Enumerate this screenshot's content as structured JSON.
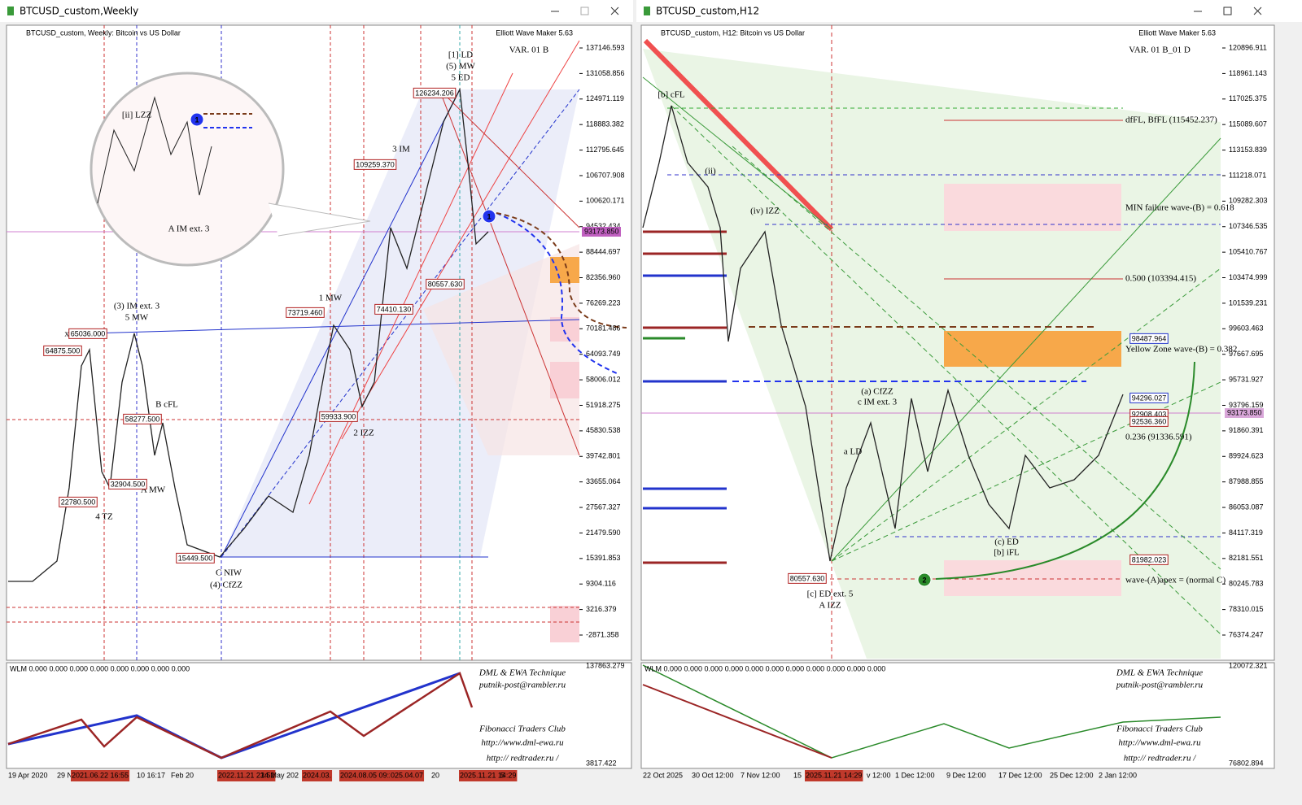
{
  "windows": [
    {
      "title": "BTCUSD_custom,Weekly",
      "header": "BTCUSD_custom, Weekly:  Bitcoin vs US Dollar",
      "tool": "Elliott Wave Maker 5.63",
      "price_labels": [
        "137146.593",
        "131058.856",
        "124971.119",
        "118883.382",
        "112795.645",
        "106707.908",
        "100620.171",
        "94532.434",
        "88444.697",
        "82356.960",
        "76269.223",
        "70181.486",
        "64093.749",
        "58006.012",
        "51918.275",
        "45830.538",
        "39742.801",
        "33655.064",
        "27567.327",
        "21479.590",
        "15391.853",
        "9304.116",
        "3216.379",
        "-2871.358"
      ],
      "current_price": "93173.850",
      "dates": [
        "19 Apr 2020",
        "29 N",
        "2021.06.22 16:55",
        "10 16:17",
        "Feb 20",
        "2022.11.21 23:52",
        "14 May 202",
        "2024.03.",
        "2024.08.05 09:24",
        "025.04.07",
        "20",
        "2025.11.21 14:29",
        "5"
      ],
      "indicator": "WLM 0.000 0.000 0.000 0.000 0.000 0.000 0.000 0.000",
      "indicator_scale": [
        "137863.279",
        "3817.422"
      ],
      "footer": [
        "DML & EWA Technique",
        "putnik-post@rambler.ru",
        "Fibonacci Traders Club",
        "http://www.dml-ewa.ru",
        "http:// redtrader.ru /"
      ],
      "marker": "1",
      "annotations": [
        "VAR. 01 B",
        "[1] LD",
        "(5) MW",
        "5 ED",
        "3 IM",
        "1 MW",
        "(3) IM ext. 3",
        "5 MW",
        "x3 IM",
        "B cFL",
        "4 TZ",
        "A MW",
        "C NIW",
        "(4) CfZZ",
        "2 IZZ",
        "A IM ext. 3",
        "[ii] LZZ",
        "126234.206",
        "109259.370",
        "73719.460",
        "65036.000",
        "64875.500",
        "58277.500",
        "32904.500",
        "22780.500",
        "15449.500",
        "80557.630",
        "74410.130",
        "59933.900"
      ]
    },
    {
      "title": "BTCUSD_custom,H12",
      "header": "BTCUSD_custom, H12:  Bitcoin vs US Dollar",
      "tool": "Elliott Wave Maker 5.63",
      "price_labels": [
        "120896.911",
        "118961.143",
        "117025.375",
        "115089.607",
        "113153.839",
        "111218.071",
        "109282.303",
        "107346.535",
        "105410.767",
        "103474.999",
        "101539.231",
        "99603.463",
        "97667.695",
        "95731.927",
        "93796.159",
        "91860.391",
        "89924.623",
        "87988.855",
        "86053.087",
        "84117.319",
        "82181.551",
        "80245.783",
        "78310.015",
        "76374.247"
      ],
      "current_price": "93173.850",
      "dates": [
        "22 Oct 2025",
        "30 Oct 12:00",
        "7 Nov 12:00",
        "15",
        "2025.11.21 14:29",
        "v 12:00",
        "1 Dec 12:00",
        "9 Dec 12:00",
        "17 Dec 12:00",
        "25 Dec 12:00",
        "2 Jan 12:00"
      ],
      "indicator": "WLM 0.000 0.000 0.000 0.000 0.000 0.000 0.000 0.000 0.000 0.000 0.000",
      "indicator_scale": [
        "120072.321",
        "76802.894"
      ],
      "footer": [
        "DML & EWA Technique",
        "putnik-post@rambler.ru",
        "Fibonacci Traders Club",
        "http://www.dml-ewa.ru",
        "http:// redtrader.ru /"
      ],
      "marker": "2",
      "annotations": [
        "VAR. 01 B_01 D",
        "[b] cFL",
        "(iv) IZZ",
        "(ii)",
        "(a) CfZZ",
        "c IM ext. 3",
        "a LD",
        "[c] ED ext. 5",
        "A IZZ",
        "(c) ED",
        "[b] iFL",
        "dfFL, BfFL (115452.237)",
        "MIN failure wave-(B) = 0.618",
        "0.500 (103394.415)",
        "Yellow Zone wave-(B) = 0.382",
        "0.236 (91336.591)",
        "wave-(A)apex = (normal C)",
        "94296.027",
        "92908.403",
        "92536.360",
        "81982.023",
        "80557.630",
        "98487.964"
      ]
    }
  ]
}
